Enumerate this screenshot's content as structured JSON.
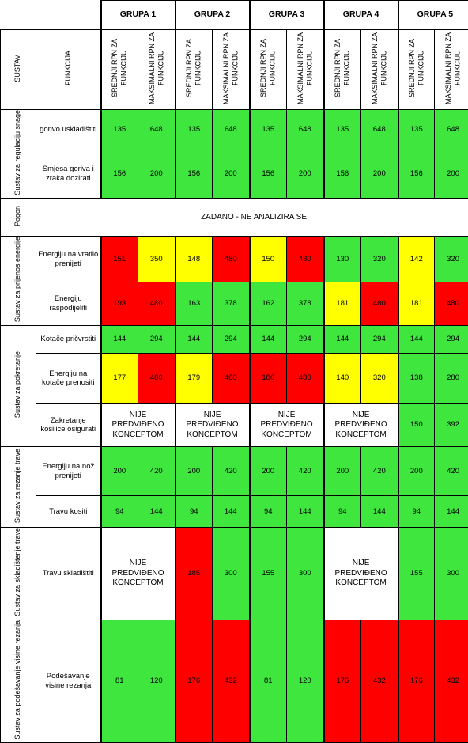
{
  "header": {
    "sustav": "SUSTAV",
    "funkcija": "FUNKCIJA",
    "groups": [
      "GRUPA 1",
      "GRUPA 2",
      "GRUPA 3",
      "GRUPA 4",
      "GRUPA 5"
    ],
    "subheaders": [
      "SREDNJI RPN ZA FUNKCIJU",
      "MAKSIMALNI RPN ZA FUNKCIJU"
    ]
  },
  "systems": [
    {
      "name": "Sustav za regulaciju snage",
      "rows": [
        {
          "function": "gorivo uskladištiti",
          "groups": [
            {
              "values": [
                135,
                648
              ],
              "colors": [
                "#3ee63e",
                "#3ee63e"
              ]
            },
            {
              "values": [
                135,
                648
              ],
              "colors": [
                "#3ee63e",
                "#3ee63e"
              ]
            },
            {
              "values": [
                135,
                648
              ],
              "colors": [
                "#3ee63e",
                "#3ee63e"
              ]
            },
            {
              "values": [
                135,
                648
              ],
              "colors": [
                "#3ee63e",
                "#3ee63e"
              ]
            },
            {
              "values": [
                135,
                648
              ],
              "colors": [
                "#3ee63e",
                "#3ee63e"
              ]
            }
          ]
        },
        {
          "function": "Smjesa goriva i zraka dozirati",
          "groups": [
            {
              "values": [
                156,
                200
              ],
              "colors": [
                "#3ee63e",
                "#3ee63e"
              ]
            },
            {
              "values": [
                156,
                200
              ],
              "colors": [
                "#3ee63e",
                "#3ee63e"
              ]
            },
            {
              "values": [
                156,
                200
              ],
              "colors": [
                "#3ee63e",
                "#3ee63e"
              ]
            },
            {
              "values": [
                156,
                200
              ],
              "colors": [
                "#3ee63e",
                "#3ee63e"
              ]
            },
            {
              "values": [
                156,
                200
              ],
              "colors": [
                "#3ee63e",
                "#3ee63e"
              ]
            }
          ]
        }
      ]
    },
    {
      "name": "Pogon",
      "note": "ZADANO - NE ANALIZIRA SE"
    },
    {
      "name": "Sustav za prijenos energije",
      "rows": [
        {
          "function": "Energiju na vratilo prenijeti",
          "groups": [
            {
              "values": [
                151,
                350
              ],
              "colors": [
                "#ff0000",
                "#ffff00"
              ]
            },
            {
              "values": [
                148,
                480
              ],
              "colors": [
                "#ffff00",
                "#ff0000"
              ]
            },
            {
              "values": [
                150,
                480
              ],
              "colors": [
                "#ffff00",
                "#ff0000"
              ]
            },
            {
              "values": [
                130,
                320
              ],
              "colors": [
                "#3ee63e",
                "#3ee63e"
              ]
            },
            {
              "values": [
                142,
                320
              ],
              "colors": [
                "#ffff00",
                "#3ee63e"
              ]
            }
          ]
        },
        {
          "function": "Energiju raspodijeliti",
          "groups": [
            {
              "values": [
                193,
                480
              ],
              "colors": [
                "#ff0000",
                "#ff0000"
              ]
            },
            {
              "values": [
                163,
                378
              ],
              "colors": [
                "#3ee63e",
                "#3ee63e"
              ]
            },
            {
              "values": [
                162,
                378
              ],
              "colors": [
                "#3ee63e",
                "#3ee63e"
              ]
            },
            {
              "values": [
                181,
                480
              ],
              "colors": [
                "#ffff00",
                "#ff0000"
              ]
            },
            {
              "values": [
                181,
                480
              ],
              "colors": [
                "#ffff00",
                "#ff0000"
              ]
            }
          ]
        }
      ]
    },
    {
      "name": "Sustav za pokretanje",
      "rows": [
        {
          "function": "Kotače pričvrstiti",
          "groups": [
            {
              "values": [
                144,
                294
              ],
              "colors": [
                "#3ee63e",
                "#3ee63e"
              ]
            },
            {
              "values": [
                144,
                294
              ],
              "colors": [
                "#3ee63e",
                "#3ee63e"
              ]
            },
            {
              "values": [
                144,
                294
              ],
              "colors": [
                "#3ee63e",
                "#3ee63e"
              ]
            },
            {
              "values": [
                144,
                294
              ],
              "colors": [
                "#3ee63e",
                "#3ee63e"
              ]
            },
            {
              "values": [
                144,
                294
              ],
              "colors": [
                "#3ee63e",
                "#3ee63e"
              ]
            }
          ]
        },
        {
          "function": "Energiju na kotače prenositi",
          "groups": [
            {
              "values": [
                177,
                480
              ],
              "colors": [
                "#ffff00",
                "#ff0000"
              ]
            },
            {
              "values": [
                179,
                480
              ],
              "colors": [
                "#ffff00",
                "#ff0000"
              ]
            },
            {
              "values": [
                186,
                480
              ],
              "colors": [
                "#ff0000",
                "#ff0000"
              ]
            },
            {
              "values": [
                140,
                320
              ],
              "colors": [
                "#ffff00",
                "#ffff00"
              ]
            },
            {
              "values": [
                138,
                280
              ],
              "colors": [
                "#3ee63e",
                "#3ee63e"
              ]
            }
          ]
        },
        {
          "function": "Zakretanje kosilice osigurati",
          "groups": [
            {
              "note": "NIJE PREDVIĐENO KONCEPTOM"
            },
            {
              "note": "NIJE PREDVIĐENO KONCEPTOM"
            },
            {
              "note": "NIJE PREDVIĐENO KONCEPTOM"
            },
            {
              "note": "NIJE PREDVIĐENO KONCEPTOM"
            },
            {
              "values": [
                150,
                392
              ],
              "colors": [
                "#3ee63e",
                "#3ee63e"
              ]
            }
          ]
        }
      ]
    },
    {
      "name": "Sustav za rezanje trave",
      "rows": [
        {
          "function": "Energiju na nož prenijeti",
          "groups": [
            {
              "values": [
                200,
                420
              ],
              "colors": [
                "#3ee63e",
                "#3ee63e"
              ]
            },
            {
              "values": [
                200,
                420
              ],
              "colors": [
                "#3ee63e",
                "#3ee63e"
              ]
            },
            {
              "values": [
                200,
                420
              ],
              "colors": [
                "#3ee63e",
                "#3ee63e"
              ]
            },
            {
              "values": [
                200,
                420
              ],
              "colors": [
                "#3ee63e",
                "#3ee63e"
              ]
            },
            {
              "values": [
                200,
                420
              ],
              "colors": [
                "#3ee63e",
                "#3ee63e"
              ]
            }
          ]
        },
        {
          "function": "Travu kositi",
          "groups": [
            {
              "values": [
                94,
                144
              ],
              "colors": [
                "#3ee63e",
                "#3ee63e"
              ]
            },
            {
              "values": [
                94,
                144
              ],
              "colors": [
                "#3ee63e",
                "#3ee63e"
              ]
            },
            {
              "values": [
                94,
                144
              ],
              "colors": [
                "#3ee63e",
                "#3ee63e"
              ]
            },
            {
              "values": [
                94,
                144
              ],
              "colors": [
                "#3ee63e",
                "#3ee63e"
              ]
            },
            {
              "values": [
                94,
                144
              ],
              "colors": [
                "#3ee63e",
                "#3ee63e"
              ]
            }
          ]
        }
      ]
    },
    {
      "name": "Sustav za skladištenje trave",
      "rows": [
        {
          "function": "Travu skladištiti",
          "groups": [
            {
              "note": "NIJE PREDVIĐENO KONCEPTOM"
            },
            {
              "values": [
                185,
                300
              ],
              "colors": [
                "#ff0000",
                "#3ee63e"
              ]
            },
            {
              "values": [
                155,
                300
              ],
              "colors": [
                "#3ee63e",
                "#3ee63e"
              ]
            },
            {
              "note": "NIJE PREDVIĐENO KONCEPTOM"
            },
            {
              "values": [
                155,
                300
              ],
              "colors": [
                "#3ee63e",
                "#3ee63e"
              ]
            }
          ]
        }
      ]
    },
    {
      "name": "Sustav za podešavanje visine rezanja",
      "rows": [
        {
          "function": "Podešavanje visine rezanja",
          "groups": [
            {
              "values": [
                81,
                120
              ],
              "colors": [
                "#3ee63e",
                "#3ee63e"
              ]
            },
            {
              "values": [
                176,
                432
              ],
              "colors": [
                "#ff0000",
                "#ff0000"
              ]
            },
            {
              "values": [
                81,
                120
              ],
              "colors": [
                "#3ee63e",
                "#3ee63e"
              ]
            },
            {
              "values": [
                176,
                432
              ],
              "colors": [
                "#ff0000",
                "#ff0000"
              ]
            },
            {
              "values": [
                176,
                432
              ],
              "colors": [
                "#ff0000",
                "#ff0000"
              ]
            }
          ]
        }
      ]
    }
  ]
}
